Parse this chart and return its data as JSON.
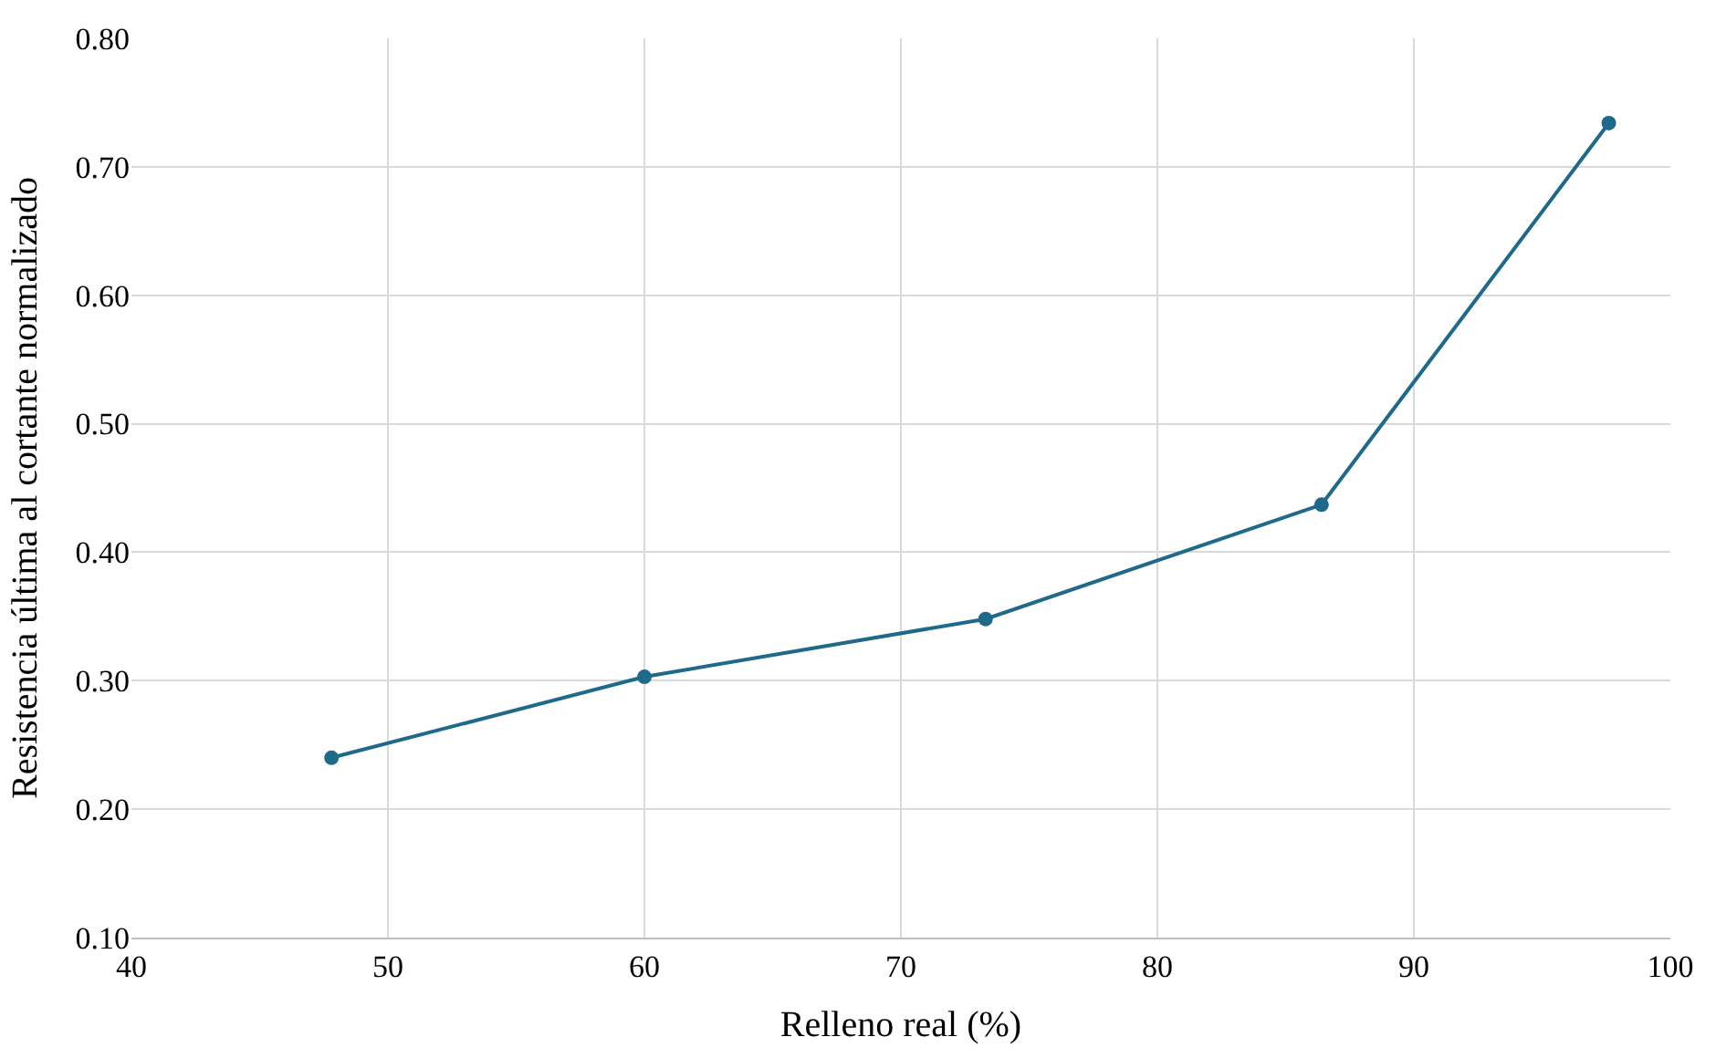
{
  "chart_data": {
    "type": "line",
    "xlabel": "Relleno real (%)",
    "ylabel": "Resistencia última al cortante normalizado",
    "series": [
      {
        "color": "#1f6a8a",
        "x": [
          47.8,
          60.0,
          73.3,
          86.4,
          97.6
        ],
        "values": [
          0.24,
          0.303,
          0.348,
          0.437,
          0.734
        ]
      }
    ],
    "xlim": [
      40,
      100
    ],
    "xticks": [
      40,
      50,
      60,
      70,
      80,
      90,
      100
    ],
    "ylim": [
      0.1,
      0.8
    ],
    "yticks": [
      {
        "value": 0.1,
        "label": "0.10"
      },
      {
        "value": 0.2,
        "label": "0.20"
      },
      {
        "value": 0.3,
        "label": "0.30"
      },
      {
        "value": 0.4,
        "label": "0.40"
      },
      {
        "value": 0.5,
        "label": "0.50"
      },
      {
        "value": 0.6,
        "label": "0.60"
      },
      {
        "value": 0.7,
        "label": "0.70"
      },
      {
        "value": 0.8,
        "label": "0.80"
      }
    ],
    "grid": true,
    "marker": "circle",
    "line_style": "solid",
    "legend": false
  }
}
